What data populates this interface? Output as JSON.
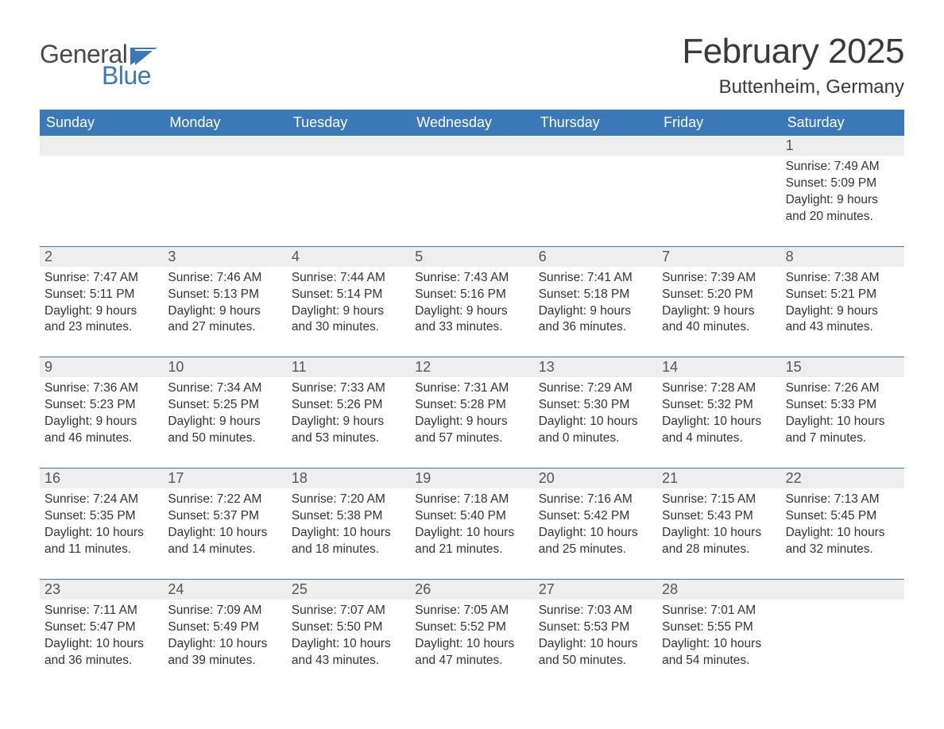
{
  "logo": {
    "text_general": "General",
    "text_blue": "Blue",
    "flag_color": "#3b78b8"
  },
  "title": "February 2025",
  "location": "Buttenheim, Germany",
  "colors": {
    "header_bg": "#3b78b8",
    "header_text": "#ffffff",
    "daynum_bg": "#eeeeee",
    "week_border": "#3b78b8",
    "body_text": "#333333",
    "title_text": "#3a3a3a"
  },
  "day_labels": [
    "Sunday",
    "Monday",
    "Tuesday",
    "Wednesday",
    "Thursday",
    "Friday",
    "Saturday"
  ],
  "weeks": [
    [
      {
        "n": "",
        "sunrise": "",
        "sunset": "",
        "daylight": ""
      },
      {
        "n": "",
        "sunrise": "",
        "sunset": "",
        "daylight": ""
      },
      {
        "n": "",
        "sunrise": "",
        "sunset": "",
        "daylight": ""
      },
      {
        "n": "",
        "sunrise": "",
        "sunset": "",
        "daylight": ""
      },
      {
        "n": "",
        "sunrise": "",
        "sunset": "",
        "daylight": ""
      },
      {
        "n": "",
        "sunrise": "",
        "sunset": "",
        "daylight": ""
      },
      {
        "n": "1",
        "sunrise": "Sunrise: 7:49 AM",
        "sunset": "Sunset: 5:09 PM",
        "daylight": "Daylight: 9 hours and 20 minutes."
      }
    ],
    [
      {
        "n": "2",
        "sunrise": "Sunrise: 7:47 AM",
        "sunset": "Sunset: 5:11 PM",
        "daylight": "Daylight: 9 hours and 23 minutes."
      },
      {
        "n": "3",
        "sunrise": "Sunrise: 7:46 AM",
        "sunset": "Sunset: 5:13 PM",
        "daylight": "Daylight: 9 hours and 27 minutes."
      },
      {
        "n": "4",
        "sunrise": "Sunrise: 7:44 AM",
        "sunset": "Sunset: 5:14 PM",
        "daylight": "Daylight: 9 hours and 30 minutes."
      },
      {
        "n": "5",
        "sunrise": "Sunrise: 7:43 AM",
        "sunset": "Sunset: 5:16 PM",
        "daylight": "Daylight: 9 hours and 33 minutes."
      },
      {
        "n": "6",
        "sunrise": "Sunrise: 7:41 AM",
        "sunset": "Sunset: 5:18 PM",
        "daylight": "Daylight: 9 hours and 36 minutes."
      },
      {
        "n": "7",
        "sunrise": "Sunrise: 7:39 AM",
        "sunset": "Sunset: 5:20 PM",
        "daylight": "Daylight: 9 hours and 40 minutes."
      },
      {
        "n": "8",
        "sunrise": "Sunrise: 7:38 AM",
        "sunset": "Sunset: 5:21 PM",
        "daylight": "Daylight: 9 hours and 43 minutes."
      }
    ],
    [
      {
        "n": "9",
        "sunrise": "Sunrise: 7:36 AM",
        "sunset": "Sunset: 5:23 PM",
        "daylight": "Daylight: 9 hours and 46 minutes."
      },
      {
        "n": "10",
        "sunrise": "Sunrise: 7:34 AM",
        "sunset": "Sunset: 5:25 PM",
        "daylight": "Daylight: 9 hours and 50 minutes."
      },
      {
        "n": "11",
        "sunrise": "Sunrise: 7:33 AM",
        "sunset": "Sunset: 5:26 PM",
        "daylight": "Daylight: 9 hours and 53 minutes."
      },
      {
        "n": "12",
        "sunrise": "Sunrise: 7:31 AM",
        "sunset": "Sunset: 5:28 PM",
        "daylight": "Daylight: 9 hours and 57 minutes."
      },
      {
        "n": "13",
        "sunrise": "Sunrise: 7:29 AM",
        "sunset": "Sunset: 5:30 PM",
        "daylight": "Daylight: 10 hours and 0 minutes."
      },
      {
        "n": "14",
        "sunrise": "Sunrise: 7:28 AM",
        "sunset": "Sunset: 5:32 PM",
        "daylight": "Daylight: 10 hours and 4 minutes."
      },
      {
        "n": "15",
        "sunrise": "Sunrise: 7:26 AM",
        "sunset": "Sunset: 5:33 PM",
        "daylight": "Daylight: 10 hours and 7 minutes."
      }
    ],
    [
      {
        "n": "16",
        "sunrise": "Sunrise: 7:24 AM",
        "sunset": "Sunset: 5:35 PM",
        "daylight": "Daylight: 10 hours and 11 minutes."
      },
      {
        "n": "17",
        "sunrise": "Sunrise: 7:22 AM",
        "sunset": "Sunset: 5:37 PM",
        "daylight": "Daylight: 10 hours and 14 minutes."
      },
      {
        "n": "18",
        "sunrise": "Sunrise: 7:20 AM",
        "sunset": "Sunset: 5:38 PM",
        "daylight": "Daylight: 10 hours and 18 minutes."
      },
      {
        "n": "19",
        "sunrise": "Sunrise: 7:18 AM",
        "sunset": "Sunset: 5:40 PM",
        "daylight": "Daylight: 10 hours and 21 minutes."
      },
      {
        "n": "20",
        "sunrise": "Sunrise: 7:16 AM",
        "sunset": "Sunset: 5:42 PM",
        "daylight": "Daylight: 10 hours and 25 minutes."
      },
      {
        "n": "21",
        "sunrise": "Sunrise: 7:15 AM",
        "sunset": "Sunset: 5:43 PM",
        "daylight": "Daylight: 10 hours and 28 minutes."
      },
      {
        "n": "22",
        "sunrise": "Sunrise: 7:13 AM",
        "sunset": "Sunset: 5:45 PM",
        "daylight": "Daylight: 10 hours and 32 minutes."
      }
    ],
    [
      {
        "n": "23",
        "sunrise": "Sunrise: 7:11 AM",
        "sunset": "Sunset: 5:47 PM",
        "daylight": "Daylight: 10 hours and 36 minutes."
      },
      {
        "n": "24",
        "sunrise": "Sunrise: 7:09 AM",
        "sunset": "Sunset: 5:49 PM",
        "daylight": "Daylight: 10 hours and 39 minutes."
      },
      {
        "n": "25",
        "sunrise": "Sunrise: 7:07 AM",
        "sunset": "Sunset: 5:50 PM",
        "daylight": "Daylight: 10 hours and 43 minutes."
      },
      {
        "n": "26",
        "sunrise": "Sunrise: 7:05 AM",
        "sunset": "Sunset: 5:52 PM",
        "daylight": "Daylight: 10 hours and 47 minutes."
      },
      {
        "n": "27",
        "sunrise": "Sunrise: 7:03 AM",
        "sunset": "Sunset: 5:53 PM",
        "daylight": "Daylight: 10 hours and 50 minutes."
      },
      {
        "n": "28",
        "sunrise": "Sunrise: 7:01 AM",
        "sunset": "Sunset: 5:55 PM",
        "daylight": "Daylight: 10 hours and 54 minutes."
      },
      {
        "n": "",
        "sunrise": "",
        "sunset": "",
        "daylight": ""
      }
    ]
  ]
}
